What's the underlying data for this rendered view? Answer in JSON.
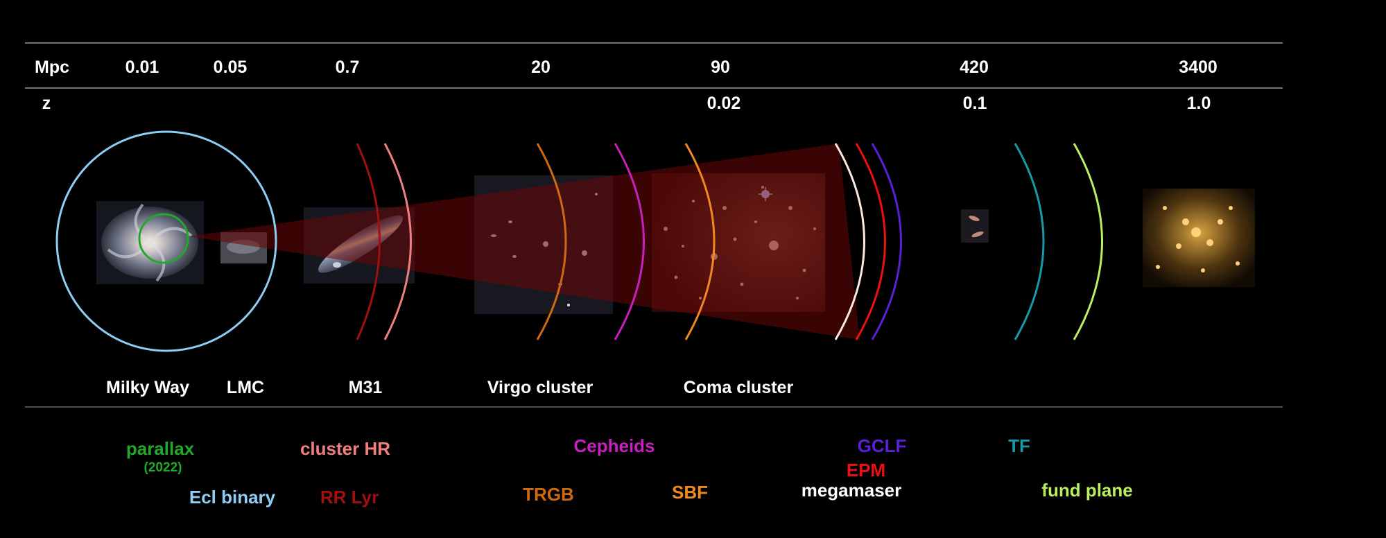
{
  "header": {
    "mpc_label": "Mpc",
    "z_label": "z",
    "mpc_values": [
      "0.01",
      "0.05",
      "0.7",
      "20",
      "90",
      "420",
      "3400"
    ],
    "z_values": [
      "0.02",
      "0.1",
      "1.0"
    ]
  },
  "objects": [
    "Milky Way",
    "LMC",
    "M31",
    "Virgo cluster",
    "Coma cluster"
  ],
  "methods": {
    "parallax": "parallax",
    "parallax_year": "(2022)",
    "ecl_binary": "Ecl binary",
    "cluster_hr": "cluster HR",
    "rr_lyr": "RR Lyr",
    "trgb": "TRGB",
    "cepheids": "Cepheids",
    "sbf": "SBF",
    "gclf": "GCLF",
    "epm": "EPM",
    "megamaser": "megamaser",
    "tf": "TF",
    "fund_plane": "fund plane"
  },
  "colors": {
    "parallax": "#22a82a",
    "ecl_binary": "#8ecdf5",
    "cluster_hr": "#f08080",
    "rr_lyr": "#a01010",
    "trgb": "#cf6a12",
    "cepheids": "#c820c0",
    "sbf": "#f08a20",
    "gclf": "#5a20d8",
    "epm": "#ee1010",
    "megamaser": "#ffffff",
    "tf": "#149aa8",
    "fund_plane": "#b8f060",
    "cone": "#6a0808"
  },
  "icons": [
    "milky-way-image",
    "lmc-image",
    "m31-image",
    "virgo-cluster-image",
    "coma-cluster-image",
    "distant-galaxy-pair-image",
    "galaxy-cluster-z1-image"
  ]
}
